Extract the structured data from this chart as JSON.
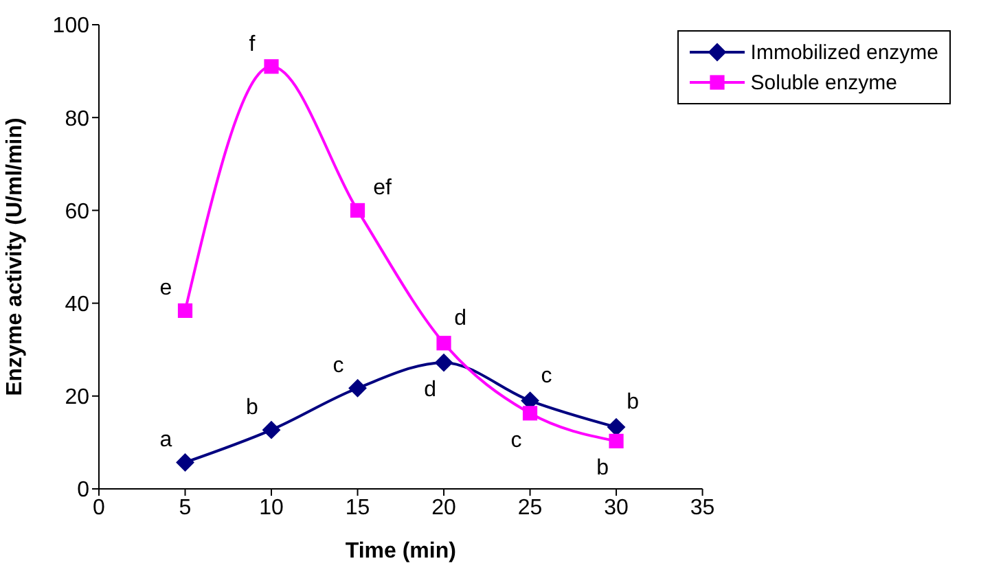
{
  "chart_data": {
    "type": "line",
    "xlabel": "Time (min)",
    "ylabel": "Enzyme activity (U/ml/min)",
    "x": [
      5,
      10,
      15,
      20,
      25,
      30
    ],
    "series": [
      {
        "name": "Immobilized enzyme",
        "color": "#000080",
        "marker": "diamond",
        "values": [
          5.7,
          12.7,
          21.7,
          27.2,
          19,
          13.3
        ]
      },
      {
        "name": "Soluble enzyme",
        "color": "#ff00ff",
        "marker": "square",
        "values": [
          38.4,
          91,
          60,
          31.4,
          16.3,
          10.3
        ]
      }
    ],
    "xlim": [
      0,
      35
    ],
    "xticks": [
      0,
      5,
      10,
      15,
      20,
      25,
      30,
      35
    ],
    "ylim": [
      0,
      100
    ],
    "yticks": [
      0,
      20,
      40,
      60,
      80,
      100
    ],
    "grid": false,
    "legend": "top right",
    "line_style": "solid",
    "annotations": [
      {
        "text": "a",
        "x": 5,
        "y": 5.7
      },
      {
        "text": "e",
        "x": 5,
        "y": 38.4
      },
      {
        "text": "f",
        "x": 10,
        "y": 91
      },
      {
        "text": "b",
        "x": 10,
        "y": 12.7
      },
      {
        "text": "c",
        "x": 15,
        "y": 21.7
      },
      {
        "text": "ef",
        "x": 15,
        "y": 60
      },
      {
        "text": "d",
        "x": 20,
        "y": 31.4
      },
      {
        "text": "d",
        "x": 20,
        "y": 27.2
      },
      {
        "text": "c",
        "x": 25,
        "y": 19
      },
      {
        "text": "c",
        "x": 25,
        "y": 16.3
      },
      {
        "text": "b",
        "x": 30,
        "y": 13.3
      },
      {
        "text": "b",
        "x": 30,
        "y": 10.3
      }
    ]
  }
}
